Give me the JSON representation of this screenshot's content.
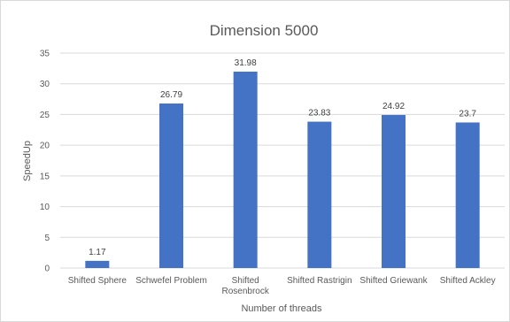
{
  "chart_data": {
    "type": "bar",
    "title": "Dimension 5000",
    "xlabel": "Number of threads",
    "ylabel": "SpeedUp",
    "categories": [
      "Shifted Sphere",
      "Schwefel Problem",
      "Shifted Rosenbrock",
      "Shifted Rastrigin",
      "Shifted Griewank",
      "Shifted Ackley"
    ],
    "category_lines": [
      [
        "Shifted Sphere"
      ],
      [
        "Schwefel Problem"
      ],
      [
        "Shifted",
        "Rosenbrock"
      ],
      [
        "Shifted Rastrigin"
      ],
      [
        "Shifted Griewank"
      ],
      [
        "Shifted Ackley"
      ]
    ],
    "values": [
      1.17,
      26.79,
      31.98,
      23.83,
      24.92,
      23.7
    ],
    "data_labels": [
      "1.17",
      "26.79",
      "31.98",
      "23.83",
      "24.92",
      "23.7"
    ],
    "ylim": [
      0,
      35
    ],
    "yticks": [
      0,
      5,
      10,
      15,
      20,
      25,
      30,
      35
    ],
    "grid": true,
    "bar_color": "#4472c4",
    "grid_color": "#d9d9d9",
    "legend": "none"
  }
}
